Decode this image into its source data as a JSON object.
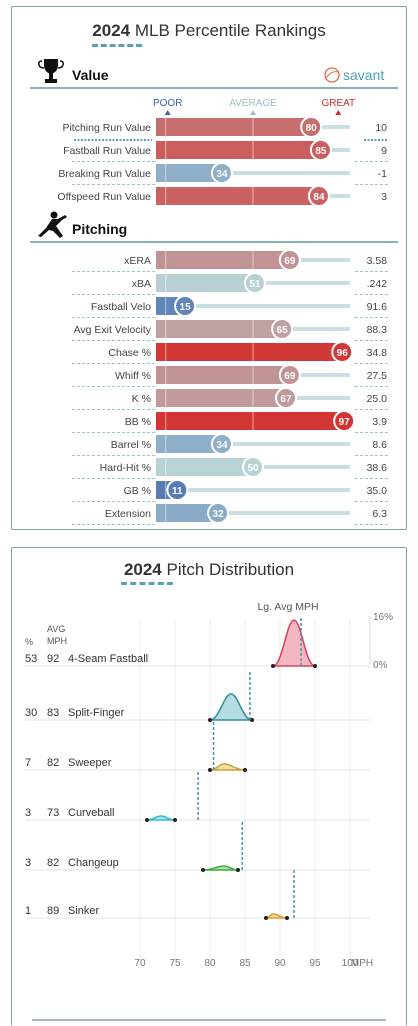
{
  "percentile": {
    "title_year": "2024",
    "title_text": "MLB Percentile Rankings",
    "brand": "savant",
    "legend": {
      "poor": "POOR",
      "average": "AVERAGE",
      "great": "GREAT"
    },
    "sections": [
      {
        "name": "Value",
        "icon": "trophy-icon",
        "rows": [
          {
            "label": "Pitching Run Value",
            "percentile": 80,
            "value": "10"
          },
          {
            "label": "Fastball Run Value",
            "percentile": 85,
            "value": "9"
          },
          {
            "label": "Breaking Run Value",
            "percentile": 34,
            "value": "-1"
          },
          {
            "label": "Offspeed Run Value",
            "percentile": 84,
            "value": "3"
          }
        ]
      },
      {
        "name": "Pitching",
        "icon": "pitcher-icon",
        "rows": [
          {
            "label": "xERA",
            "percentile": 69,
            "value": "3.58"
          },
          {
            "label": "xBA",
            "percentile": 51,
            "value": ".242"
          },
          {
            "label": "Fastball Velo",
            "percentile": 15,
            "value": "91.6"
          },
          {
            "label": "Avg Exit Velocity",
            "percentile": 65,
            "value": "88.3"
          },
          {
            "label": "Chase %",
            "percentile": 96,
            "value": "34.8"
          },
          {
            "label": "Whiff %",
            "percentile": 69,
            "value": "27.5"
          },
          {
            "label": "K %",
            "percentile": 67,
            "value": "25.0"
          },
          {
            "label": "BB %",
            "percentile": 97,
            "value": "3.9"
          },
          {
            "label": "Barrel %",
            "percentile": 34,
            "value": "8.6"
          },
          {
            "label": "Hard-Hit %",
            "percentile": 50,
            "value": "38.6"
          },
          {
            "label": "GB %",
            "percentile": 11,
            "value": "35.0"
          },
          {
            "label": "Extension",
            "percentile": 32,
            "value": "6.3"
          }
        ]
      }
    ]
  },
  "distribution": {
    "title_year": "2024",
    "title_text": "Pitch Distribution",
    "lg_avg_label": "Lg. Avg MPH",
    "col_pct": "%",
    "col_avg": "AVG",
    "col_mph": "MPH",
    "usage_top": "16%",
    "usage_bottom": "0%"
  },
  "chart_data": {
    "type": "area",
    "title": "2024 Pitch Distribution",
    "xlabel": "MPH",
    "xlim": [
      68,
      102
    ],
    "xticks": [
      70,
      75,
      80,
      85,
      90,
      95,
      100
    ],
    "series": [
      {
        "name": "4-Seam Fastball",
        "usage": 53,
        "avg_mph": 92,
        "min": 89,
        "max": 95,
        "lg_avg": 93.0,
        "color": "#d9425c",
        "fill": "#f0aab9"
      },
      {
        "name": "Split-Finger",
        "usage": 30,
        "avg_mph": 83,
        "min": 80,
        "max": 86,
        "lg_avg": 85.7,
        "color": "#2d8f98",
        "fill": "#a8d6da"
      },
      {
        "name": "Sweeper",
        "usage": 7,
        "avg_mph": 82,
        "min": 80,
        "max": 85,
        "lg_avg": 80.5,
        "color": "#c9a23b",
        "fill": "#ecd79a"
      },
      {
        "name": "Curveball",
        "usage": 3,
        "avg_mph": 73,
        "min": 71,
        "max": 75,
        "lg_avg": 78.3,
        "color": "#36b9c9",
        "fill": "#a5e2ea"
      },
      {
        "name": "Changeup",
        "usage": 3,
        "avg_mph": 82,
        "min": 79,
        "max": 84,
        "lg_avg": 84.6,
        "color": "#3cab3c",
        "fill": "#a8dca8"
      },
      {
        "name": "Sinker",
        "usage": 1,
        "avg_mph": 89,
        "min": 88,
        "max": 91,
        "lg_avg": 92.0,
        "color": "#e39b2c",
        "fill": "#f2cf95"
      }
    ]
  },
  "colors": {
    "poor": "#3b64ad",
    "average": "#b7d3d6",
    "great": "#d52b2b",
    "accent": "#5a9ec0"
  }
}
